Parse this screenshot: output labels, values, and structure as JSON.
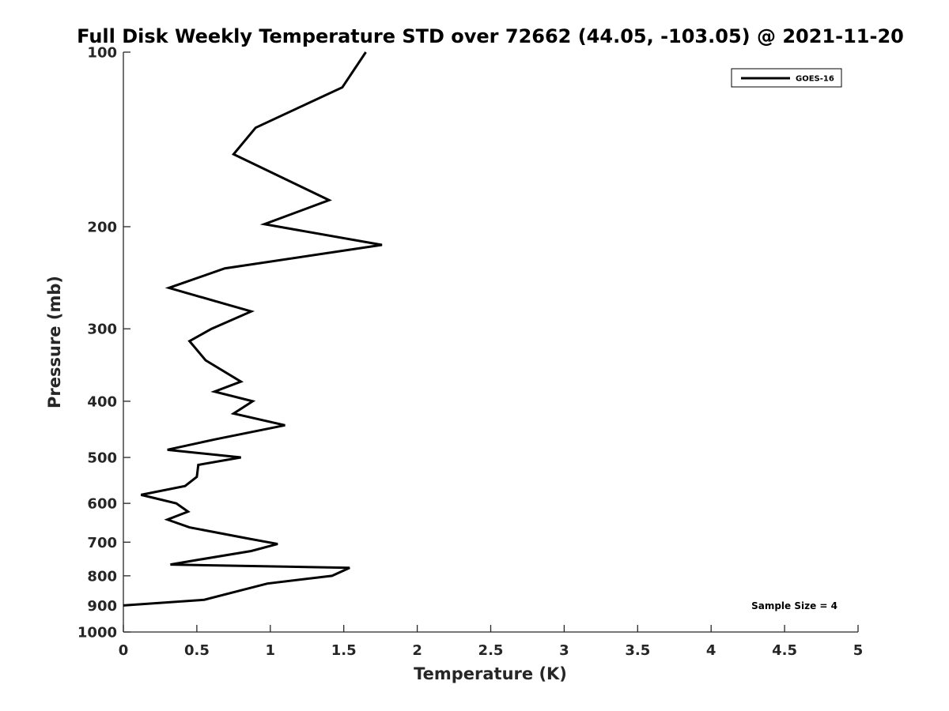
{
  "chart_data": {
    "type": "line",
    "title": "Full Disk Weekly Temperature STD over 72662 (44.05, -103.05) @ 2021-11-20",
    "xlabel": "Temperature (K)",
    "ylabel": "Pressure (mb)",
    "xlim": [
      0,
      5
    ],
    "ylim": [
      100,
      1000
    ],
    "y_scale": "log",
    "y_reversed": true,
    "x_ticks": [
      "0",
      "0.5",
      "1",
      "1.5",
      "2",
      "2.5",
      "3",
      "3.5",
      "4",
      "4.5",
      "5"
    ],
    "y_ticks": [
      "100",
      "200",
      "300",
      "400",
      "500",
      "600",
      "700",
      "800",
      "900",
      "1000"
    ],
    "grid": false,
    "legend": {
      "location": "top-right",
      "entries": [
        "GOES-16"
      ]
    },
    "annotation": "Sample Size = 4",
    "series": [
      {
        "name": "GOES-16",
        "color": "#000000",
        "points": [
          [
            1.65,
            100
          ],
          [
            1.49,
            115
          ],
          [
            0.9,
            135
          ],
          [
            0.75,
            150
          ],
          [
            1.4,
            180
          ],
          [
            0.96,
            198
          ],
          [
            1.76,
            215
          ],
          [
            0.69,
            236
          ],
          [
            0.31,
            255
          ],
          [
            0.87,
            280
          ],
          [
            0.6,
            300
          ],
          [
            0.45,
            315
          ],
          [
            0.56,
            340
          ],
          [
            0.8,
            370
          ],
          [
            0.62,
            385
          ],
          [
            0.88,
            400
          ],
          [
            0.75,
            420
          ],
          [
            1.1,
            440
          ],
          [
            0.63,
            465
          ],
          [
            0.3,
            485
          ],
          [
            0.8,
            500
          ],
          [
            0.51,
            515
          ],
          [
            0.5,
            540
          ],
          [
            0.42,
            560
          ],
          [
            0.12,
            580
          ],
          [
            0.36,
            600
          ],
          [
            0.44,
            620
          ],
          [
            0.3,
            640
          ],
          [
            0.45,
            660
          ],
          [
            0.85,
            690
          ],
          [
            1.05,
            705
          ],
          [
            0.87,
            725
          ],
          [
            0.52,
            750
          ],
          [
            0.32,
            765
          ],
          [
            1.54,
            775
          ],
          [
            1.42,
            800
          ],
          [
            0.98,
            825
          ],
          [
            0.82,
            845
          ],
          [
            0.55,
            880
          ],
          [
            0.0,
            900
          ]
        ]
      }
    ]
  }
}
